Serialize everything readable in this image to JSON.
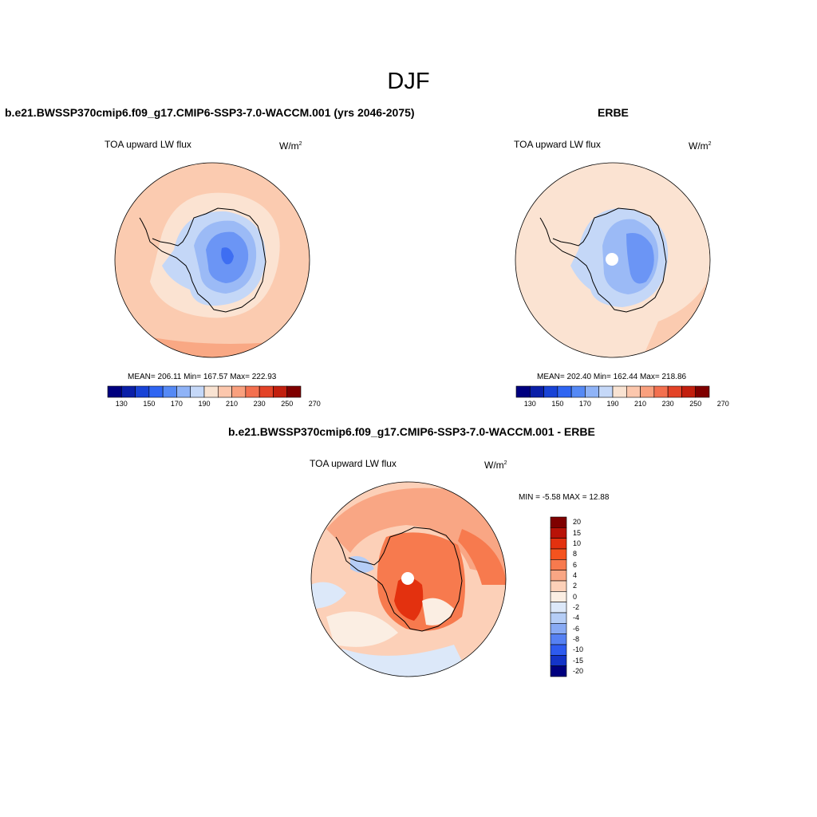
{
  "figure": {
    "title": "DJF"
  },
  "panels": {
    "model": {
      "title": "b.e21.BWSSP370cmip6.f09_g17.CMIP6-SSP3-7.0-WACCM.001 (yrs 2046-2075)",
      "variable": "TOA upward LW flux",
      "units_base": "W/m",
      "units_exp": "2",
      "stats": "MEAN= 206.11  Min= 167.57  Max= 222.93",
      "colorbar_ticks": [
        "130",
        "150",
        "170",
        "190",
        "210",
        "230",
        "250",
        "270"
      ]
    },
    "obs": {
      "title": "ERBE",
      "variable": "TOA upward LW flux",
      "units_base": "W/m",
      "units_exp": "2",
      "stats": "MEAN= 202.40  Min= 162.44  Max= 218.86",
      "colorbar_ticks": [
        "130",
        "150",
        "170",
        "190",
        "210",
        "230",
        "250",
        "270"
      ]
    },
    "diff": {
      "title": "b.e21.BWSSP370cmip6.f09_g17.CMIP6-SSP3-7.0-WACCM.001 - ERBE",
      "variable": "TOA upward LW flux",
      "units_base": "W/m",
      "units_exp": "2",
      "stats": "MIN =  -5.58 MAX =  12.88",
      "colorbar_ticks": [
        "20",
        "15",
        "10",
        "8",
        "6",
        "4",
        "2",
        "0",
        "-2",
        "-4",
        "-6",
        "-8",
        "-10",
        "-15",
        "-20"
      ]
    }
  },
  "colors": {
    "abs_scale": [
      "#00007f",
      "#0a1fa8",
      "#1843d6",
      "#2f65f2",
      "#5589f5",
      "#8fb3f7",
      "#c5d8f8",
      "#f9e3d2",
      "#fcc7ad",
      "#f9a07e",
      "#f3704f",
      "#e34327",
      "#c21f0e",
      "#7f0000"
    ],
    "diff_scale": [
      "#7f0000",
      "#b81308",
      "#e3310f",
      "#f5531e",
      "#f77a4e",
      "#f9a684",
      "#fcd0b8",
      "#fbeee3",
      "#dce8f9",
      "#b5cdf6",
      "#88aaf4",
      "#5681f3",
      "#2e5bef",
      "#1434c8",
      "#00007f"
    ],
    "ocean_model": "#fbcbb0",
    "ocean_obs": "#fbe3d2",
    "ice_light": "#c4d7f7",
    "ice_mid": "#9bbaf6",
    "ice_deep": "#6b95f5",
    "ice_core": "#3e6ef2"
  }
}
